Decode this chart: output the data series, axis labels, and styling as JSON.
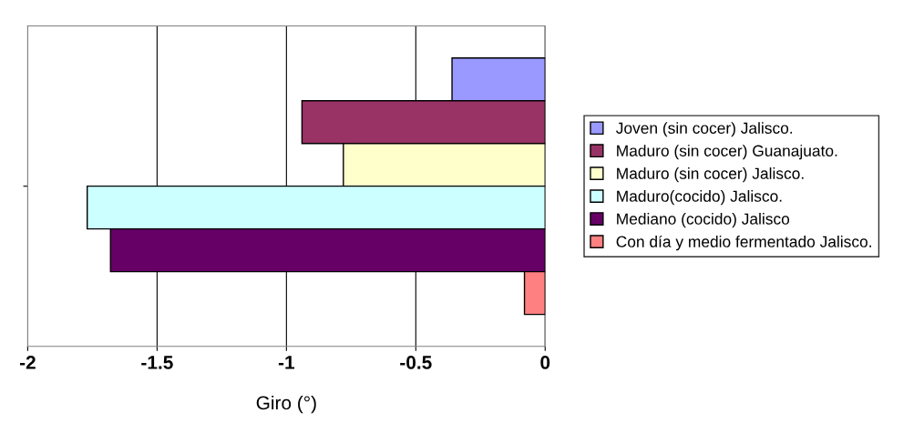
{
  "chart_data": {
    "type": "bar",
    "orientation": "horizontal",
    "xlabel": "Giro (°)",
    "categories": [
      null
    ],
    "series": [
      {
        "name": "Joven (sin cocer) Jalisco.",
        "color": "#9999ff",
        "values": [
          -0.36
        ]
      },
      {
        "name": "Maduro (sin cocer) Guanajuato.",
        "color": "#993366",
        "values": [
          -0.94
        ]
      },
      {
        "name": "Maduro (sin cocer) Jalisco.",
        "color": "#ffffcc",
        "values": [
          -0.78
        ]
      },
      {
        "name": "Maduro(cocido) Jalisco.",
        "color": "#ccffff",
        "values": [
          -1.77
        ]
      },
      {
        "name": "Mediano (cocido) Jalisco",
        "color": "#660066",
        "values": [
          -1.68
        ]
      },
      {
        "name": "Con día y medio fermentado Jalisco.",
        "color": "#ff8080",
        "values": [
          -0.08
        ]
      }
    ],
    "xlim": [
      -2,
      0
    ],
    "xticks": [
      -2,
      -1.5,
      -1,
      -0.5,
      0
    ],
    "grid": "x",
    "legend": "right"
  }
}
